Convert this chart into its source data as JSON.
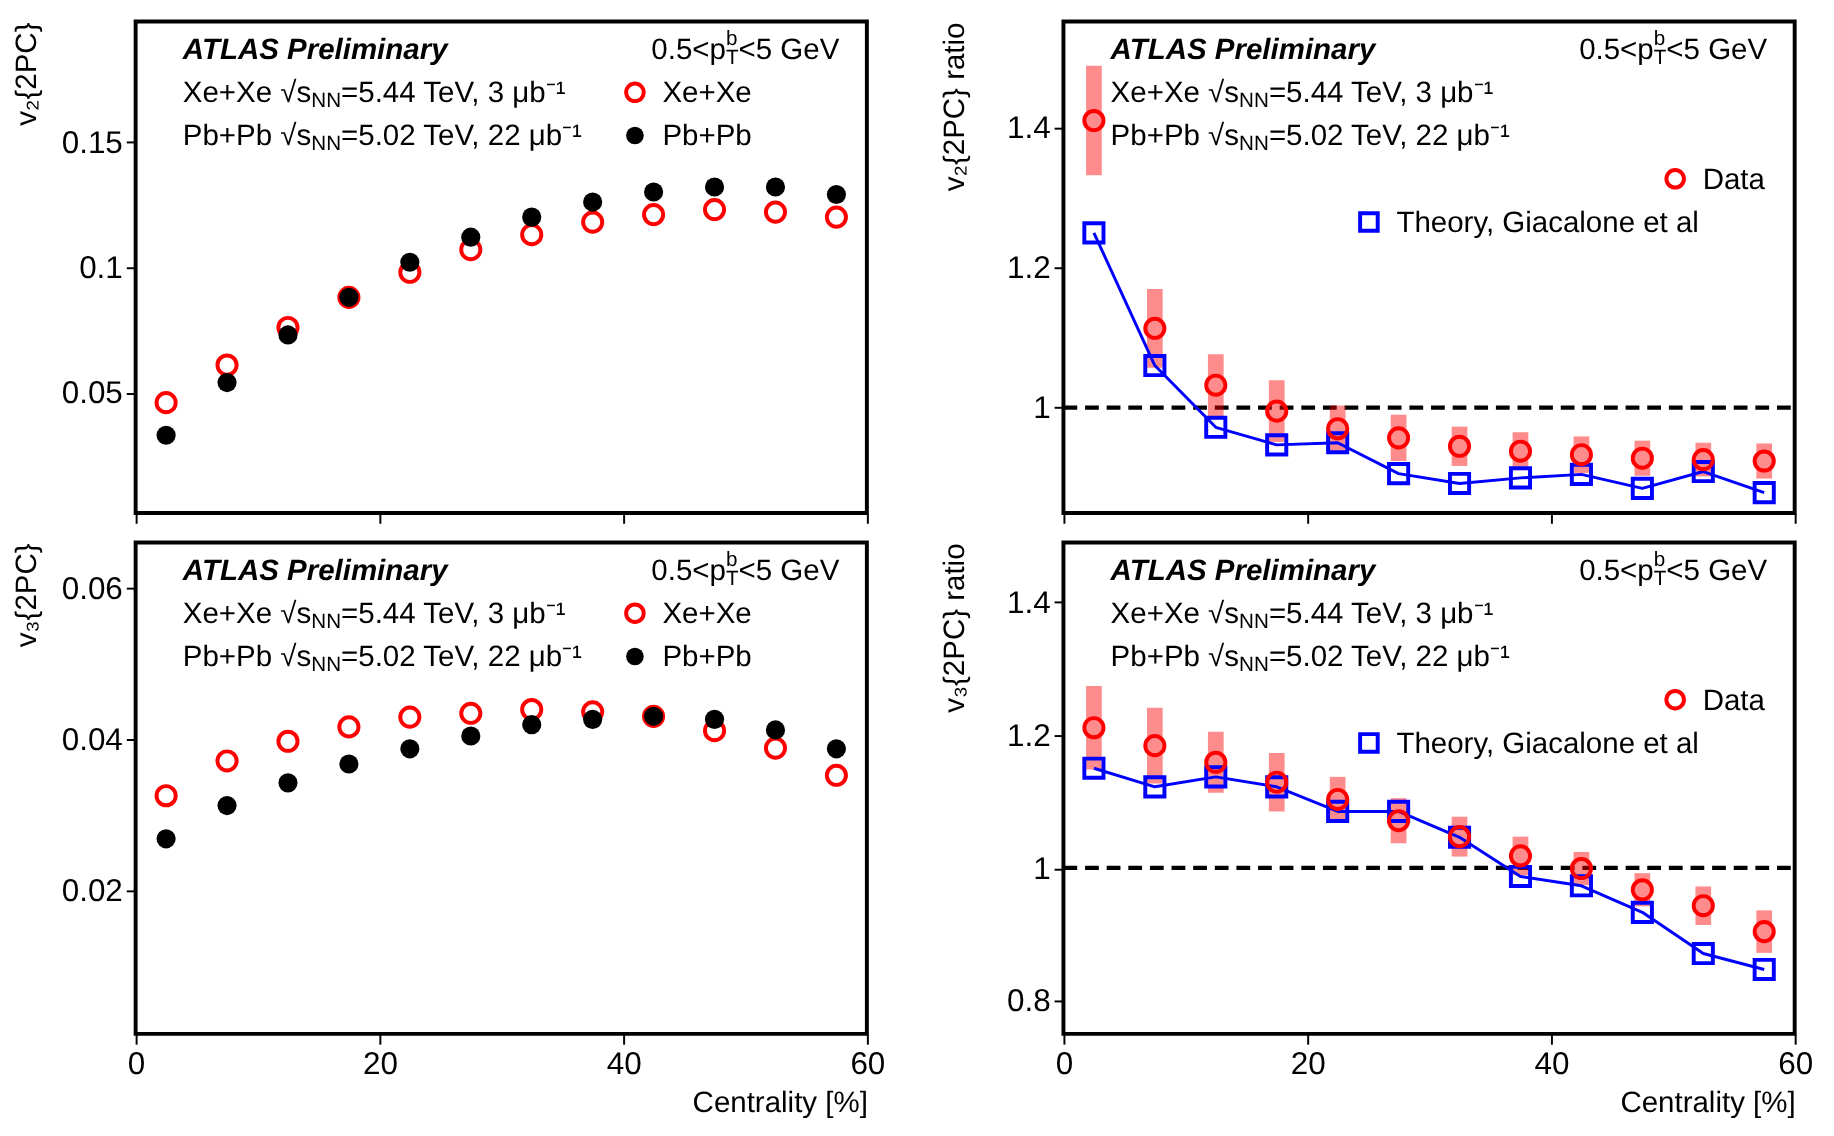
{
  "chart_data": [
    {
      "type": "scatter",
      "ylabel": "v₂{2PC}",
      "x": [
        2.5,
        7.5,
        12.5,
        17.5,
        22.5,
        27.5,
        32.5,
        37.5,
        42.5,
        47.5,
        52.5,
        57.5
      ],
      "xlim": [
        0,
        60
      ],
      "xticks": [
        0,
        20,
        40,
        60
      ],
      "ylim": [
        0.002,
        0.198
      ],
      "yticks": [
        0.05,
        0.1,
        0.15
      ],
      "tick_labels": "y",
      "grid": false,
      "legend": "top right",
      "marker": "circle",
      "annotations": [
        "ATLAS Preliminary",
        "Xe+Xe √s$_{NN}$=5.44 TeV, 3 μb⁻¹",
        "Pb+Pb √s$_{NN}$=5.02 TeV, 22 μb⁻¹",
        "0.5<p$_{T}$$^{b}$<5 GeV"
      ],
      "series": [
        {
          "name": "Xe+Xe",
          "color": "#ff0000",
          "values": [
            0.046,
            0.061,
            0.076,
            0.088,
            0.098,
            0.107,
            0.113,
            0.118,
            0.121,
            0.123,
            0.122,
            0.12
          ]
        },
        {
          "name": "Pb+Pb",
          "color": "#000000",
          "values": [
            0.033,
            0.054,
            0.073,
            0.088,
            0.102,
            0.112,
            0.12,
            0.126,
            0.13,
            0.132,
            0.132,
            0.129
          ]
        }
      ]
    },
    {
      "type": "scatter",
      "ylabel": "v₂{2PC} ratio",
      "x": [
        2.5,
        7.5,
        12.5,
        17.5,
        22.5,
        27.5,
        32.5,
        37.5,
        42.5,
        47.5,
        52.5,
        57.5
      ],
      "xlim": [
        0,
        60
      ],
      "xticks": [
        0,
        20,
        40,
        60
      ],
      "ylim": [
        0.85,
        1.55
      ],
      "yticks": [
        1,
        1.2,
        1.4
      ],
      "tick_labels": "y",
      "grid": false,
      "legend": "top right",
      "marker": "circle",
      "annotations": [
        "ATLAS Preliminary",
        "Xe+Xe √s$_{NN}$=5.44 TeV, 3 μb⁻¹",
        "Pb+Pb √s$_{NN}$=5.02 TeV, 22 μb⁻¹",
        "0.5<p$_{T}$$^{b}$<5 GeV"
      ],
      "ref_lines": [
        {
          "axis": "y",
          "value": 1,
          "color": "#000000",
          "line_style": "dashed"
        }
      ],
      "series": [
        {
          "name": "Data",
          "color": "#ff0000",
          "values": [
            1.409,
            1.113,
            1.032,
            0.995,
            0.97,
            0.957,
            0.945,
            0.938,
            0.933,
            0.928,
            0.926,
            0.924
          ],
          "errors": [
            0.078,
            0.056,
            0.044,
            0.044,
            0.033,
            0.033,
            0.028,
            0.027,
            0.026,
            0.025,
            0.024,
            0.025
          ]
        },
        {
          "name": "Theory, Giacalone et al",
          "type": "line",
          "marker": "square",
          "line_style": "solid",
          "color": "#0000ff",
          "values": [
            1.249,
            1.06,
            0.972,
            0.947,
            0.95,
            0.906,
            0.892,
            0.9,
            0.905,
            0.885,
            0.909,
            0.879
          ]
        }
      ]
    },
    {
      "type": "scatter",
      "ylabel": "v₃{2PC}",
      "xlabel": "Centrality [%]",
      "x": [
        2.5,
        7.5,
        12.5,
        17.5,
        22.5,
        27.5,
        32.5,
        37.5,
        42.5,
        47.5,
        52.5,
        57.5
      ],
      "xlim": [
        0,
        60
      ],
      "xticks": [
        0,
        20,
        40,
        60
      ],
      "ylim": [
        0.001,
        0.066
      ],
      "yticks": [
        0.02,
        0.04,
        0.06
      ],
      "grid": false,
      "legend": "top right",
      "marker": "circle",
      "annotations": [
        "ATLAS Preliminary",
        "Xe+Xe √s$_{NN}$=5.44 TeV, 3 μb⁻¹",
        "Pb+Pb √s$_{NN}$=5.02 TeV, 22 μb⁻¹",
        "0.5<p$_{T}$$^{b}$<5 GeV"
      ],
      "series": [
        {
          "name": "Xe+Xe",
          "color": "#ff0000",
          "values": [
            0.0325,
            0.0371,
            0.0397,
            0.0416,
            0.0429,
            0.0434,
            0.0439,
            0.0436,
            0.043,
            0.0411,
            0.0388,
            0.0352
          ]
        },
        {
          "name": "Pb+Pb",
          "color": "#000000",
          "values": [
            0.0268,
            0.0312,
            0.0342,
            0.0367,
            0.0387,
            0.0404,
            0.0419,
            0.0426,
            0.043,
            0.0426,
            0.0412,
            0.0387
          ]
        }
      ]
    },
    {
      "type": "scatter",
      "ylabel": "v₃{2PC} ratio",
      "xlabel": "Centrality [%]",
      "x": [
        2.5,
        7.5,
        12.5,
        17.5,
        22.5,
        27.5,
        32.5,
        37.5,
        42.5,
        47.5,
        52.5,
        57.5
      ],
      "xlim": [
        0,
        60
      ],
      "xticks": [
        0,
        20,
        40,
        60
      ],
      "ylim": [
        0.75,
        1.49
      ],
      "yticks": [
        0.8,
        1,
        1.2,
        1.4
      ],
      "grid": false,
      "legend": "top right",
      "marker": "circle",
      "annotations": [
        "ATLAS Preliminary",
        "Xe+Xe √s$_{NN}$=5.44 TeV, 3 μb⁻¹",
        "Pb+Pb √s$_{NN}$=5.02 TeV, 22 μb⁻¹",
        "0.5<p$_{T}$$^{b}$<5 GeV"
      ],
      "ref_lines": [
        {
          "axis": "y",
          "value": 1,
          "color": "#000000",
          "line_style": "dashed"
        }
      ],
      "series": [
        {
          "name": "Data",
          "color": "#ff0000",
          "values": [
            1.211,
            1.184,
            1.159,
            1.129,
            1.103,
            1.071,
            1.047,
            1.018,
            0.999,
            0.967,
            0.943,
            0.904
          ],
          "errors": [
            0.063,
            0.057,
            0.046,
            0.044,
            0.034,
            0.034,
            0.03,
            0.029,
            0.025,
            0.025,
            0.029,
            0.032
          ]
        },
        {
          "name": "Theory, Giacalone et al",
          "type": "line",
          "marker": "square",
          "line_style": "solid",
          "color": "#0000ff",
          "values": [
            1.15,
            1.122,
            1.137,
            1.122,
            1.085,
            1.085,
            1.046,
            0.987,
            0.973,
            0.933,
            0.871,
            0.847
          ]
        }
      ]
    }
  ]
}
